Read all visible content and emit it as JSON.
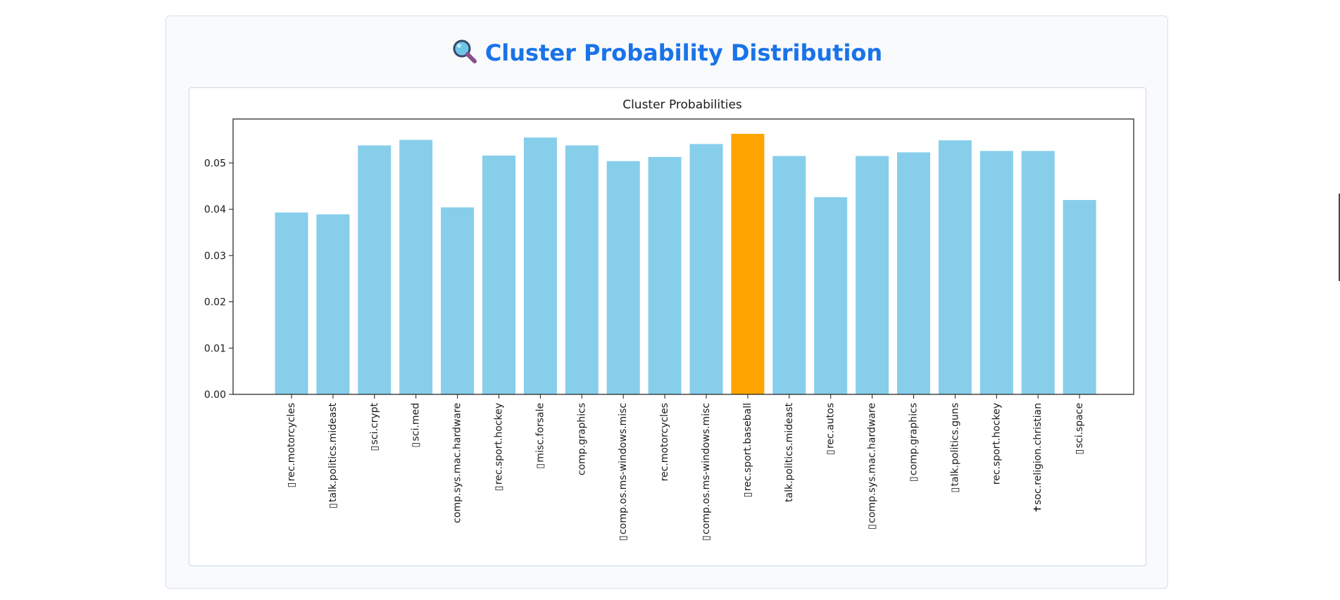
{
  "page": {
    "title": "Cluster Probability Distribution",
    "title_icon": "magnifying-glass-icon"
  },
  "colors": {
    "title": "#1a73e8",
    "bar": "#87ceeb",
    "bar_highlight": "#ffa500",
    "card_bg": "#f8fafc",
    "plot_bg": "#ffffff"
  },
  "chart_data": {
    "type": "bar",
    "title": "Cluster Probabilities",
    "xlabel": "",
    "ylabel": "",
    "ylim": [
      0,
      0.0595
    ],
    "yticks": [
      "0.00",
      "0.01",
      "0.02",
      "0.03",
      "0.04",
      "0.05"
    ],
    "categories": [
      "▯ rec.motorcycles",
      "▯ talk.politics.mideast",
      "▯ sci.crypt",
      "▯ sci.med",
      "comp.sys.mac.hardware",
      "▯ rec.sport.hockey",
      "▯ misc.forsale",
      "comp.graphics",
      "▯ comp.os.ms-windows.misc",
      "rec.motorcycles",
      "▯ comp.os.ms-windows.misc",
      "▯ rec.sport.baseball",
      "talk.politics.mideast",
      "▯ rec.autos",
      "▯ comp.sys.mac.hardware",
      "▯ comp.graphics",
      "▯ talk.politics.guns",
      "rec.sport.hockey",
      "✝soc.religion.christian",
      "▯ sci.space"
    ],
    "values": [
      0.0393,
      0.0389,
      0.0538,
      0.055,
      0.0404,
      0.0516,
      0.0555,
      0.0538,
      0.0504,
      0.0513,
      0.0541,
      0.0563,
      0.0515,
      0.0426,
      0.0515,
      0.0523,
      0.0549,
      0.0526,
      0.0526,
      0.042
    ],
    "highlight_index": 11,
    "grid": false,
    "legend": "none"
  }
}
